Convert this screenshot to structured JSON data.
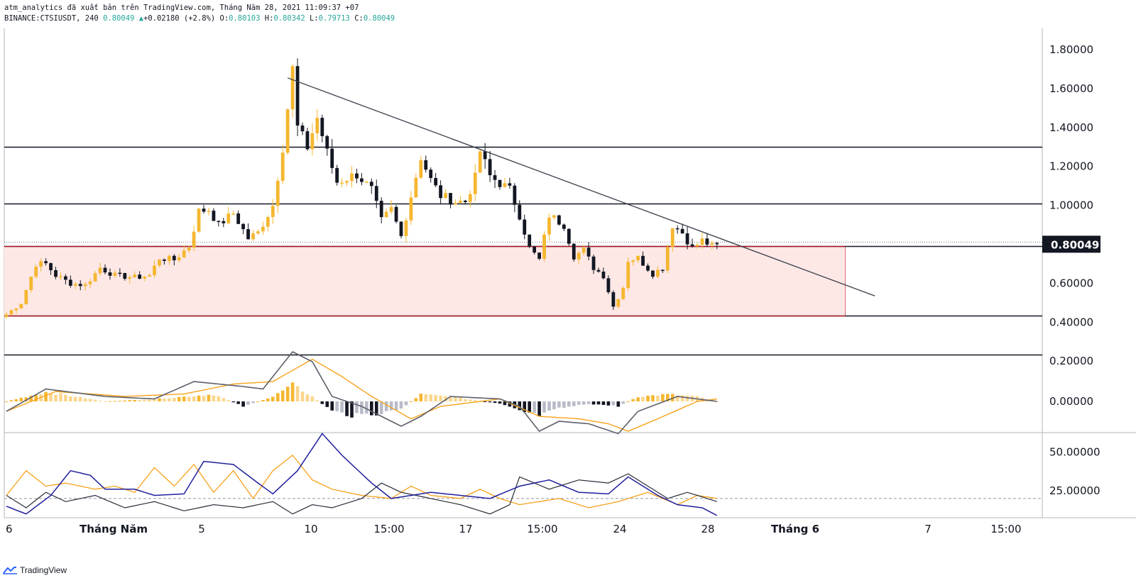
{
  "header": {
    "line1": "atm_analytics đã xuất bản trên TradingView.com, Tháng Năm 28, 2021 11:09:37 +07",
    "symbol": "BINANCE:CTSIUSDT, 240",
    "last": "0.80049",
    "up_icon": "triangle-up-icon",
    "change": "+0.02180 (+2.8%)",
    "open": "O:0.80103",
    "high": "H:0.80342",
    "low": "L:0.79713",
    "close": "C:0.80049"
  },
  "brand": {
    "name": "TradingView",
    "icon": "tradingview-logo-icon"
  },
  "colors": {
    "bull": "#f5b731",
    "bear": "#131722",
    "macd_signal": "#f7a21b",
    "macd_line": "#5d606b",
    "adx": "#1f1f9e",
    "di_plus": "#f7a21b",
    "di_minus": "#2a2e39",
    "zone_fill": "#fde8e6",
    "zone_line": "#c0111e"
  },
  "chart_data": [
    {
      "type": "candlestick",
      "symbol": "BINANCE:CTSIUSDT",
      "interval": "240",
      "last_price": 0.80049,
      "last_price_label": "0.80049",
      "y_ticks": [
        "1.80000",
        "1.60000",
        "1.40000",
        "1.20000",
        "1.00000",
        "0.60000",
        "0.40000",
        "0.20000"
      ],
      "y_tick_values": [
        1.8,
        1.6,
        1.4,
        1.2,
        1.0,
        0.6,
        0.4,
        0.2
      ],
      "ylim": [
        0.19,
        1.91
      ],
      "x_ticks": [
        "6",
        "Tháng Năm",
        "5",
        "10",
        "15:00",
        "17",
        "15:00",
        "24",
        "28",
        "Tháng 6",
        "7",
        "15:00"
      ],
      "horizontal_levels": [
        1.3,
        1.01,
        0.79,
        0.435,
        0.235
      ],
      "support_zone": [
        0.435,
        0.79
      ],
      "trendline": {
        "from_price": 1.655,
        "to_price": 0.535,
        "from_bar": 57,
        "to_bar": 176
      },
      "waypoints": [
        {
          "bar": 0,
          "price": 0.44
        },
        {
          "bar": 3,
          "price": 0.5
        },
        {
          "bar": 6,
          "price": 0.7
        },
        {
          "bar": 8,
          "price": 0.7
        },
        {
          "bar": 10,
          "price": 0.64
        },
        {
          "bar": 13,
          "price": 0.6
        },
        {
          "bar": 16,
          "price": 0.59
        },
        {
          "bar": 19,
          "price": 0.68
        },
        {
          "bar": 22,
          "price": 0.64
        },
        {
          "bar": 26,
          "price": 0.63
        },
        {
          "bar": 29,
          "price": 0.64
        },
        {
          "bar": 31,
          "price": 0.73
        },
        {
          "bar": 34,
          "price": 0.72
        },
        {
          "bar": 37,
          "price": 0.79
        },
        {
          "bar": 39,
          "price": 0.97
        },
        {
          "bar": 41,
          "price": 0.98
        },
        {
          "bar": 43,
          "price": 0.9
        },
        {
          "bar": 46,
          "price": 0.96
        },
        {
          "bar": 49,
          "price": 0.83
        },
        {
          "bar": 51,
          "price": 0.86
        },
        {
          "bar": 54,
          "price": 1.0
        },
        {
          "bar": 56,
          "price": 1.3
        },
        {
          "bar": 58,
          "price": 1.7
        },
        {
          "bar": 59,
          "price": 1.4
        },
        {
          "bar": 61,
          "price": 1.3
        },
        {
          "bar": 63,
          "price": 1.45
        },
        {
          "bar": 65,
          "price": 1.27
        },
        {
          "bar": 67,
          "price": 1.12
        },
        {
          "bar": 71,
          "price": 1.16
        },
        {
          "bar": 74,
          "price": 1.08
        },
        {
          "bar": 76,
          "price": 0.92
        },
        {
          "bar": 78,
          "price": 0.98
        },
        {
          "bar": 80,
          "price": 0.84
        },
        {
          "bar": 82,
          "price": 1.05
        },
        {
          "bar": 84,
          "price": 1.25
        },
        {
          "bar": 86,
          "price": 1.13
        },
        {
          "bar": 88,
          "price": 1.05
        },
        {
          "bar": 91,
          "price": 1.02
        },
        {
          "bar": 93,
          "price": 1.02
        },
        {
          "bar": 95,
          "price": 1.14
        },
        {
          "bar": 96,
          "price": 1.28
        },
        {
          "bar": 98,
          "price": 1.15
        },
        {
          "bar": 102,
          "price": 1.08
        },
        {
          "bar": 104,
          "price": 0.95
        },
        {
          "bar": 106,
          "price": 0.78
        },
        {
          "bar": 108,
          "price": 0.72
        },
        {
          "bar": 110,
          "price": 0.95
        },
        {
          "bar": 113,
          "price": 0.9
        },
        {
          "bar": 115,
          "price": 0.74
        },
        {
          "bar": 117,
          "price": 0.77
        },
        {
          "bar": 119,
          "price": 0.68
        },
        {
          "bar": 121,
          "price": 0.64
        },
        {
          "bar": 123,
          "price": 0.48
        },
        {
          "bar": 125,
          "price": 0.58
        },
        {
          "bar": 126,
          "price": 0.72
        },
        {
          "bar": 128,
          "price": 0.73
        },
        {
          "bar": 131,
          "price": 0.65
        },
        {
          "bar": 133,
          "price": 0.68
        },
        {
          "bar": 135,
          "price": 0.9
        },
        {
          "bar": 137,
          "price": 0.86
        },
        {
          "bar": 139,
          "price": 0.78
        },
        {
          "bar": 141,
          "price": 0.82
        },
        {
          "bar": 143,
          "price": 0.79
        },
        {
          "bar": 144,
          "price": 0.8
        }
      ]
    },
    {
      "type": "macd",
      "y_ticks": [
        "0.00000"
      ],
      "y_tick_values": [
        0
      ],
      "series": [
        {
          "role": "macd",
          "points": [
            {
              "bar": 0,
              "v": -0.04
            },
            {
              "bar": 8,
              "v": 0.05
            },
            {
              "bar": 20,
              "v": 0.02
            },
            {
              "bar": 30,
              "v": 0.01
            },
            {
              "bar": 38,
              "v": 0.08
            },
            {
              "bar": 48,
              "v": 0.06
            },
            {
              "bar": 52,
              "v": 0.05
            },
            {
              "bar": 58,
              "v": 0.2
            },
            {
              "bar": 62,
              "v": 0.16
            },
            {
              "bar": 66,
              "v": 0.02
            },
            {
              "bar": 72,
              "v": -0.02
            },
            {
              "bar": 80,
              "v": -0.1
            },
            {
              "bar": 84,
              "v": -0.06
            },
            {
              "bar": 90,
              "v": 0.02
            },
            {
              "bar": 100,
              "v": 0.01
            },
            {
              "bar": 104,
              "v": -0.02
            },
            {
              "bar": 108,
              "v": -0.12
            },
            {
              "bar": 112,
              "v": -0.08
            },
            {
              "bar": 118,
              "v": -0.09
            },
            {
              "bar": 124,
              "v": -0.13
            },
            {
              "bar": 128,
              "v": -0.04
            },
            {
              "bar": 136,
              "v": 0.02
            },
            {
              "bar": 144,
              "v": 0.0
            }
          ]
        },
        {
          "role": "signal",
          "points": [
            {
              "bar": 0,
              "v": -0.04
            },
            {
              "bar": 10,
              "v": 0.04
            },
            {
              "bar": 24,
              "v": 0.02
            },
            {
              "bar": 36,
              "v": 0.03
            },
            {
              "bar": 46,
              "v": 0.07
            },
            {
              "bar": 54,
              "v": 0.08
            },
            {
              "bar": 62,
              "v": 0.17
            },
            {
              "bar": 68,
              "v": 0.1
            },
            {
              "bar": 74,
              "v": 0.02
            },
            {
              "bar": 82,
              "v": -0.07
            },
            {
              "bar": 88,
              "v": -0.02
            },
            {
              "bar": 100,
              "v": 0.01
            },
            {
              "bar": 108,
              "v": -0.06
            },
            {
              "bar": 116,
              "v": -0.07
            },
            {
              "bar": 122,
              "v": -0.09
            },
            {
              "bar": 126,
              "v": -0.12
            },
            {
              "bar": 132,
              "v": -0.07
            },
            {
              "bar": 140,
              "v": 0.0
            },
            {
              "bar": 144,
              "v": 0.01
            }
          ]
        }
      ],
      "histogram": [
        {
          "bar": 0,
          "v": 0.0
        },
        {
          "bar": 8,
          "v": 0.04
        },
        {
          "bar": 14,
          "v": 0.02
        },
        {
          "bar": 20,
          "v": 0.0
        },
        {
          "bar": 30,
          "v": 0.01
        },
        {
          "bar": 36,
          "v": 0.02
        },
        {
          "bar": 42,
          "v": 0.03
        },
        {
          "bar": 48,
          "v": -0.02
        },
        {
          "bar": 54,
          "v": 0.02
        },
        {
          "bar": 58,
          "v": 0.07
        },
        {
          "bar": 62,
          "v": 0.02
        },
        {
          "bar": 66,
          "v": -0.04
        },
        {
          "bar": 70,
          "v": -0.06
        },
        {
          "bar": 76,
          "v": -0.05
        },
        {
          "bar": 80,
          "v": -0.03
        },
        {
          "bar": 84,
          "v": 0.03
        },
        {
          "bar": 90,
          "v": 0.02
        },
        {
          "bar": 100,
          "v": -0.01
        },
        {
          "bar": 104,
          "v": -0.04
        },
        {
          "bar": 108,
          "v": -0.06
        },
        {
          "bar": 112,
          "v": -0.03
        },
        {
          "bar": 118,
          "v": -0.01
        },
        {
          "bar": 124,
          "v": -0.02
        },
        {
          "bar": 128,
          "v": 0.02
        },
        {
          "bar": 134,
          "v": 0.03
        },
        {
          "bar": 140,
          "v": 0.02
        },
        {
          "bar": 144,
          "v": 0.0
        }
      ]
    },
    {
      "type": "dmi",
      "y_ticks": [
        "50.00000",
        "25.00000"
      ],
      "y_tick_values": [
        50,
        25
      ],
      "reference_level": 20,
      "series": [
        {
          "role": "adx",
          "points": [
            {
              "bar": 0,
              "v": 15
            },
            {
              "bar": 4,
              "v": 10
            },
            {
              "bar": 9,
              "v": 22
            },
            {
              "bar": 13,
              "v": 38
            },
            {
              "bar": 17,
              "v": 35
            },
            {
              "bar": 20,
              "v": 26
            },
            {
              "bar": 26,
              "v": 26
            },
            {
              "bar": 30,
              "v": 22
            },
            {
              "bar": 36,
              "v": 23
            },
            {
              "bar": 40,
              "v": 44
            },
            {
              "bar": 46,
              "v": 42
            },
            {
              "bar": 51,
              "v": 30
            },
            {
              "bar": 54,
              "v": 23
            },
            {
              "bar": 59,
              "v": 38
            },
            {
              "bar": 64,
              "v": 62
            },
            {
              "bar": 68,
              "v": 48
            },
            {
              "bar": 74,
              "v": 30
            },
            {
              "bar": 78,
              "v": 20
            },
            {
              "bar": 86,
              "v": 24
            },
            {
              "bar": 92,
              "v": 22
            },
            {
              "bar": 98,
              "v": 20
            },
            {
              "bar": 104,
              "v": 28
            },
            {
              "bar": 110,
              "v": 32
            },
            {
              "bar": 116,
              "v": 24
            },
            {
              "bar": 122,
              "v": 23
            },
            {
              "bar": 126,
              "v": 34
            },
            {
              "bar": 132,
              "v": 22
            },
            {
              "bar": 136,
              "v": 16
            },
            {
              "bar": 141,
              "v": 14
            },
            {
              "bar": 144,
              "v": 9
            }
          ]
        },
        {
          "role": "di_plus",
          "points": [
            {
              "bar": 0,
              "v": 22
            },
            {
              "bar": 4,
              "v": 38
            },
            {
              "bar": 8,
              "v": 28
            },
            {
              "bar": 12,
              "v": 30
            },
            {
              "bar": 18,
              "v": 26
            },
            {
              "bar": 22,
              "v": 28
            },
            {
              "bar": 26,
              "v": 24
            },
            {
              "bar": 30,
              "v": 40
            },
            {
              "bar": 34,
              "v": 28
            },
            {
              "bar": 38,
              "v": 42
            },
            {
              "bar": 42,
              "v": 24
            },
            {
              "bar": 46,
              "v": 38
            },
            {
              "bar": 50,
              "v": 20
            },
            {
              "bar": 54,
              "v": 38
            },
            {
              "bar": 58,
              "v": 48
            },
            {
              "bar": 62,
              "v": 32
            },
            {
              "bar": 66,
              "v": 26
            },
            {
              "bar": 72,
              "v": 22
            },
            {
              "bar": 78,
              "v": 20
            },
            {
              "bar": 82,
              "v": 28
            },
            {
              "bar": 86,
              "v": 22
            },
            {
              "bar": 92,
              "v": 20
            },
            {
              "bar": 96,
              "v": 26
            },
            {
              "bar": 100,
              "v": 20
            },
            {
              "bar": 104,
              "v": 16
            },
            {
              "bar": 108,
              "v": 18
            },
            {
              "bar": 112,
              "v": 20
            },
            {
              "bar": 118,
              "v": 14
            },
            {
              "bar": 124,
              "v": 18
            },
            {
              "bar": 130,
              "v": 24
            },
            {
              "bar": 136,
              "v": 16
            },
            {
              "bar": 140,
              "v": 22
            },
            {
              "bar": 144,
              "v": 20
            }
          ]
        },
        {
          "role": "di_minus",
          "points": [
            {
              "bar": 0,
              "v": 22
            },
            {
              "bar": 4,
              "v": 14
            },
            {
              "bar": 8,
              "v": 24
            },
            {
              "bar": 12,
              "v": 18
            },
            {
              "bar": 18,
              "v": 22
            },
            {
              "bar": 24,
              "v": 14
            },
            {
              "bar": 30,
              "v": 18
            },
            {
              "bar": 36,
              "v": 12
            },
            {
              "bar": 42,
              "v": 16
            },
            {
              "bar": 48,
              "v": 14
            },
            {
              "bar": 54,
              "v": 18
            },
            {
              "bar": 58,
              "v": 10
            },
            {
              "bar": 62,
              "v": 16
            },
            {
              "bar": 66,
              "v": 14
            },
            {
              "bar": 72,
              "v": 20
            },
            {
              "bar": 76,
              "v": 30
            },
            {
              "bar": 80,
              "v": 24
            },
            {
              "bar": 86,
              "v": 20
            },
            {
              "bar": 92,
              "v": 16
            },
            {
              "bar": 98,
              "v": 10
            },
            {
              "bar": 102,
              "v": 16
            },
            {
              "bar": 104,
              "v": 34
            },
            {
              "bar": 110,
              "v": 26
            },
            {
              "bar": 116,
              "v": 32
            },
            {
              "bar": 122,
              "v": 30
            },
            {
              "bar": 126,
              "v": 36
            },
            {
              "bar": 130,
              "v": 28
            },
            {
              "bar": 134,
              "v": 20
            },
            {
              "bar": 138,
              "v": 24
            },
            {
              "bar": 144,
              "v": 18
            }
          ]
        }
      ]
    }
  ]
}
